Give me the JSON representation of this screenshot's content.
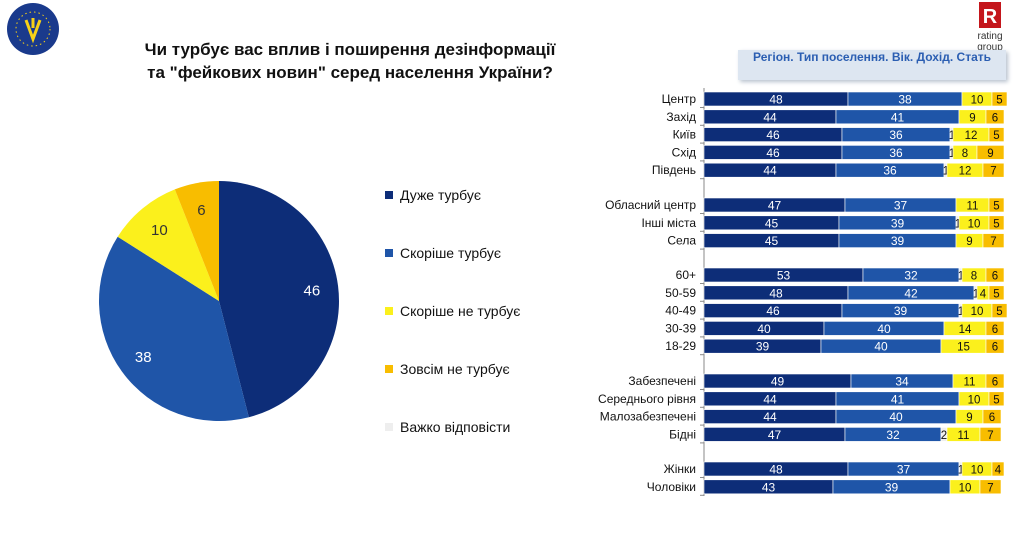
{
  "title": "Чи турбує вас вплив і поширення дезінформації та \"фейкових новин\" серед населення України?",
  "subtitle": "Регіон. Тип поселення. Вік. Дохід. Стать",
  "logos": {
    "left": "EUROPEAN UNION EU4UKRAINE",
    "right": "rating group",
    "right_letter": "R"
  },
  "colors": {
    "very": "#0d2d78",
    "rather": "#1f55a8",
    "rather_not": "#fbf01c",
    "not_at_all": "#f8bd00",
    "hard": "#eeeeee",
    "accent": "#c4161c"
  },
  "chart_data": [
    {
      "type": "pie",
      "labels": [
        "Дуже турбує",
        "Скоріше турбує",
        "Скоріше не турбує",
        "Зовсім не турбує",
        "Важко відповісти"
      ],
      "values": [
        46,
        38,
        10,
        6,
        0
      ],
      "slice_labels": [
        "46",
        "38",
        "10",
        "6",
        ""
      ],
      "legend": "right"
    },
    {
      "type": "bar",
      "stacked": true,
      "orientation": "horizontal",
      "xlim": [
        0,
        100
      ],
      "series_order": [
        "Дуже турбує",
        "Скоріше турбує",
        "Важко відповісти",
        "Скоріше не турбує",
        "Зовсім не турбує"
      ],
      "groups": [
        {
          "rows": [
            {
              "label": "Центр",
              "values": [
                48,
                38,
                0,
                10,
                5
              ]
            },
            {
              "label": "Захід",
              "values": [
                44,
                41,
                0,
                9,
                6
              ]
            },
            {
              "label": "Київ",
              "values": [
                46,
                36,
                1,
                12,
                5
              ]
            },
            {
              "label": "Схід",
              "values": [
                46,
                36,
                1,
                8,
                9
              ]
            },
            {
              "label": "Південь",
              "values": [
                44,
                36,
                1,
                12,
                7
              ]
            }
          ]
        },
        {
          "rows": [
            {
              "label": "Обласний центр",
              "values": [
                47,
                37,
                0,
                11,
                5
              ]
            },
            {
              "label": "Інші міста",
              "values": [
                45,
                39,
                1,
                10,
                5
              ]
            },
            {
              "label": "Села",
              "values": [
                45,
                39,
                0,
                9,
                7
              ]
            }
          ]
        },
        {
          "rows": [
            {
              "label": "60+",
              "values": [
                53,
                32,
                1,
                8,
                6
              ]
            },
            {
              "label": "50-59",
              "values": [
                48,
                42,
                1,
                4,
                5
              ]
            },
            {
              "label": "40-49",
              "values": [
                46,
                39,
                1,
                10,
                5
              ]
            },
            {
              "label": "30-39",
              "values": [
                40,
                40,
                0,
                14,
                6
              ]
            },
            {
              "label": "18-29",
              "values": [
                39,
                40,
                0,
                15,
                6
              ]
            }
          ]
        },
        {
          "rows": [
            {
              "label": "Забезпечені",
              "values": [
                49,
                34,
                0,
                11,
                6
              ]
            },
            {
              "label": "Середнього рівня",
              "values": [
                44,
                41,
                0,
                10,
                5
              ]
            },
            {
              "label": "Малозабезпечені",
              "values": [
                44,
                40,
                0,
                9,
                6
              ]
            },
            {
              "label": "Бідні",
              "values": [
                47,
                32,
                2,
                11,
                7
              ]
            }
          ]
        },
        {
          "rows": [
            {
              "label": "Жінки",
              "values": [
                48,
                37,
                1,
                10,
                4
              ]
            },
            {
              "label": "Чоловіки",
              "values": [
                43,
                39,
                0,
                10,
                7
              ]
            }
          ]
        }
      ],
      "value_labels": {
        "Центр": [
          "48",
          "38",
          "",
          "10",
          "5"
        ],
        "Захід": [
          "44",
          "41",
          "",
          "9",
          "6"
        ],
        "Київ": [
          "46",
          "36",
          "1",
          "12",
          "5"
        ],
        "Схід": [
          "46",
          "36",
          "1",
          "8",
          "9"
        ],
        "Південь": [
          "44",
          "36",
          "1",
          "12",
          "7"
        ],
        "Обласний центр": [
          "47",
          "37",
          "",
          "11",
          "5"
        ],
        "Інші міста": [
          "45",
          "39",
          "1",
          "10",
          "5"
        ],
        "Села": [
          "45",
          "39",
          "",
          "9",
          "7"
        ],
        "60+": [
          "53",
          "32",
          "1",
          "8",
          "6"
        ],
        "50-59": [
          "48",
          "42",
          "1",
          "4",
          "5"
        ],
        "40-49": [
          "46",
          "39",
          "1",
          "10",
          "5"
        ],
        "30-39": [
          "40",
          "40",
          "",
          "14",
          "6"
        ],
        "18-29": [
          "39",
          "40",
          "",
          "15",
          "6"
        ],
        "Забезпечені": [
          "49",
          "34",
          "",
          "11",
          "6"
        ],
        "Середнього рівня": [
          "44",
          "41",
          "",
          "10",
          "5"
        ],
        "Малозабезпечені": [
          "44",
          "40",
          "",
          "9",
          "6"
        ],
        "Бідні": [
          "47",
          "32",
          "2",
          "11",
          "7"
        ],
        "Жінки": [
          "48",
          "37",
          "1",
          "10",
          "4"
        ],
        "Чоловіки": [
          "43",
          "39",
          "",
          "10",
          "7"
        ]
      }
    }
  ]
}
